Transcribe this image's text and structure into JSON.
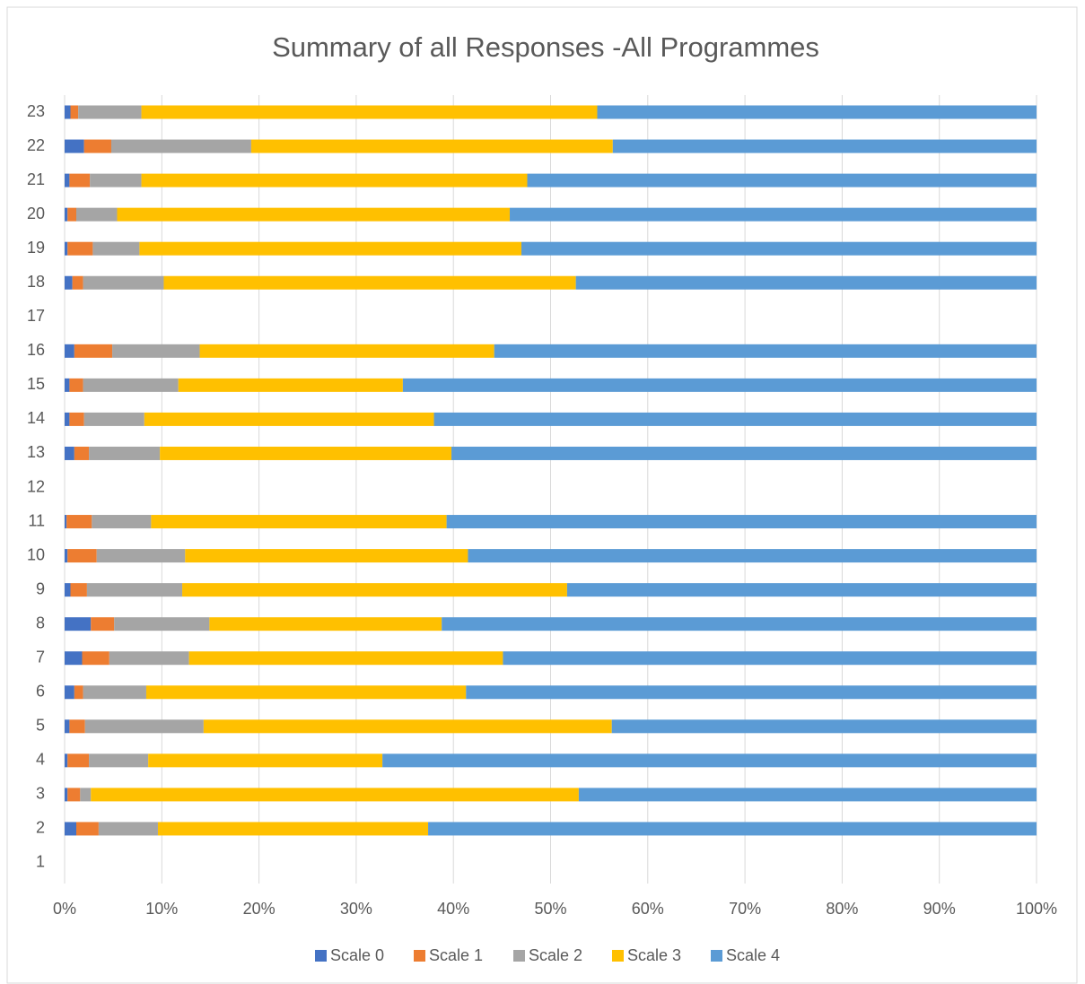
{
  "chart_data": {
    "type": "stacked_barh",
    "title": "Summary of all Responses -All Programmes",
    "categories": [
      "1",
      "2",
      "3",
      "4",
      "5",
      "6",
      "7",
      "8",
      "9",
      "10",
      "11",
      "12",
      "13",
      "14",
      "15",
      "16",
      "17",
      "18",
      "19",
      "20",
      "21",
      "22",
      "23"
    ],
    "series": [
      {
        "name": "Scale 0",
        "color": "#4472c4",
        "values": [
          null,
          1.2,
          0.3,
          0.3,
          0.5,
          1.0,
          1.8,
          2.7,
          0.6,
          0.3,
          0.2,
          null,
          1.0,
          0.5,
          0.5,
          1.0,
          null,
          0.8,
          0.3,
          0.3,
          0.5,
          2.0,
          0.6
        ]
      },
      {
        "name": "Scale 1",
        "color": "#ed7d31",
        "values": [
          null,
          2.3,
          1.3,
          2.2,
          1.6,
          0.9,
          2.8,
          2.4,
          1.7,
          3.0,
          2.6,
          null,
          1.5,
          1.5,
          1.4,
          3.9,
          null,
          1.1,
          2.6,
          0.9,
          2.1,
          2.8,
          0.8
        ]
      },
      {
        "name": "Scale 2",
        "color": "#a5a5a5",
        "values": [
          null,
          6.1,
          1.1,
          6.1,
          12.2,
          6.5,
          8.2,
          9.8,
          9.8,
          9.1,
          6.1,
          null,
          7.3,
          6.2,
          9.8,
          9.0,
          null,
          8.3,
          4.8,
          4.2,
          5.3,
          14.4,
          6.5
        ]
      },
      {
        "name": "Scale 3",
        "color": "#ffc000",
        "values": [
          null,
          27.8,
          50.2,
          24.1,
          42.0,
          32.9,
          32.3,
          23.9,
          39.6,
          29.1,
          30.4,
          null,
          30.0,
          29.8,
          23.1,
          30.3,
          null,
          42.4,
          39.3,
          40.4,
          39.7,
          37.2,
          46.9
        ]
      },
      {
        "name": "Scale 4",
        "color": "#5b9bd5",
        "values": [
          null,
          62.6,
          47.1,
          67.3,
          43.7,
          58.7,
          54.9,
          61.2,
          48.3,
          58.5,
          60.7,
          null,
          60.2,
          62.0,
          65.2,
          55.8,
          null,
          47.4,
          53.0,
          54.2,
          52.4,
          43.6,
          45.2
        ]
      }
    ],
    "xlim": [
      0,
      100
    ],
    "xticks": [
      {
        "value": 0,
        "label": "0%"
      },
      {
        "value": 10,
        "label": "10%"
      },
      {
        "value": 20,
        "label": "20%"
      },
      {
        "value": 30,
        "label": "30%"
      },
      {
        "value": 40,
        "label": "40%"
      },
      {
        "value": 50,
        "label": "50%"
      },
      {
        "value": 60,
        "label": "60%"
      },
      {
        "value": 70,
        "label": "70%"
      },
      {
        "value": 80,
        "label": "80%"
      },
      {
        "value": 90,
        "label": "90%"
      },
      {
        "value": 100,
        "label": "100%"
      }
    ],
    "grid": true,
    "legend": "bottom"
  }
}
